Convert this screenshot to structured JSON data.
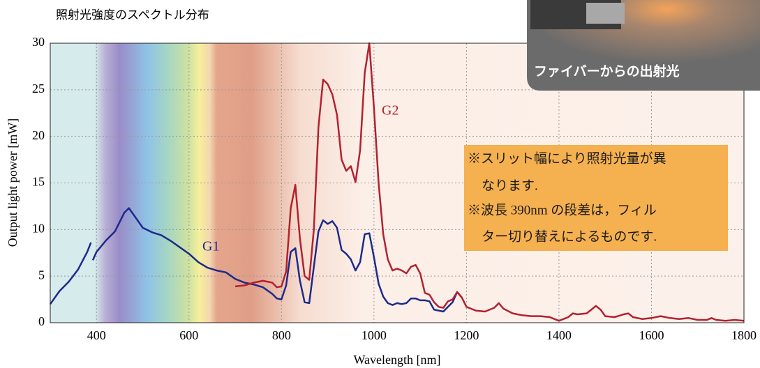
{
  "chart_data": {
    "type": "line",
    "title": "照射光強度のスペクトル分布",
    "xlabel": "Wavelength [nm]",
    "ylabel": "Output light power [mW]",
    "xlim": [
      300,
      1800
    ],
    "ylim": [
      0,
      30
    ],
    "xticks": [
      400,
      600,
      800,
      1000,
      1200,
      1400,
      1600,
      1800
    ],
    "yticks": [
      0,
      5,
      10,
      15,
      20,
      25,
      30
    ],
    "grid": true,
    "inset_caption": "ファイバーからの出射光",
    "annotation_lines": [
      "※スリット幅により照射光量が異",
      "なります.",
      "※波長 390nm の段差は，フィル",
      "ター切り替えによるものです."
    ],
    "series": [
      {
        "name": "G1",
        "color": "#1c2a8a",
        "x": [
          300,
          320,
          340,
          360,
          380,
          388,
          390,
          392,
          400,
          420,
          440,
          460,
          470,
          480,
          500,
          520,
          540,
          560,
          580,
          600,
          620,
          640,
          660,
          680,
          700,
          720,
          740,
          760,
          780,
          790,
          800,
          810,
          820,
          830,
          840,
          850,
          860,
          870,
          880,
          890,
          900,
          910,
          920,
          930,
          940,
          950,
          960,
          970,
          980,
          990,
          1000,
          1010,
          1020,
          1030,
          1040,
          1050,
          1060,
          1070,
          1080,
          1090,
          1100,
          1110,
          1120,
          1130,
          1140,
          1150,
          1160,
          1170,
          1180,
          1190
        ],
        "values": [
          2.0,
          3.4,
          4.4,
          5.7,
          7.6,
          8.6,
          null,
          6.7,
          7.6,
          8.8,
          9.8,
          11.8,
          12.3,
          11.6,
          10.2,
          9.7,
          9.4,
          8.8,
          8.1,
          7.4,
          6.5,
          5.9,
          5.6,
          5.4,
          4.7,
          4.3,
          4.1,
          3.8,
          3.1,
          2.6,
          2.5,
          4.0,
          7.6,
          8.0,
          4.5,
          2.2,
          2.1,
          6.0,
          9.8,
          11.0,
          10.6,
          10.9,
          10.2,
          7.8,
          7.4,
          6.8,
          5.6,
          6.5,
          9.5,
          9.6,
          7.0,
          4.2,
          2.8,
          2.1,
          1.9,
          2.1,
          2.0,
          2.1,
          2.6,
          2.6,
          2.4,
          2.4,
          2.3,
          1.4,
          1.3,
          1.2,
          1.7,
          2.2,
          3.3,
          2.7
        ]
      },
      {
        "name": "G2",
        "color": "#b3212f",
        "x": [
          700,
          720,
          740,
          760,
          780,
          790,
          800,
          810,
          820,
          830,
          840,
          850,
          860,
          870,
          880,
          890,
          900,
          910,
          920,
          930,
          940,
          950,
          960,
          970,
          980,
          990,
          1000,
          1010,
          1020,
          1030,
          1040,
          1050,
          1060,
          1070,
          1080,
          1090,
          1100,
          1110,
          1120,
          1130,
          1140,
          1150,
          1160,
          1170,
          1180,
          1190,
          1200,
          1220,
          1240,
          1260,
          1270,
          1280,
          1300,
          1320,
          1340,
          1360,
          1380,
          1400,
          1420,
          1430,
          1440,
          1460,
          1480,
          1490,
          1500,
          1520,
          1540,
          1550,
          1560,
          1580,
          1600,
          1620,
          1640,
          1660,
          1680,
          1700,
          1720,
          1730,
          1740,
          1760,
          1780,
          1800
        ],
        "values": [
          3.9,
          4.0,
          4.3,
          4.5,
          4.3,
          3.8,
          3.9,
          5.5,
          12.3,
          14.8,
          9.0,
          5.0,
          4.6,
          10.0,
          21.0,
          26.1,
          25.6,
          24.5,
          22.3,
          17.5,
          16.3,
          16.8,
          15.1,
          18.5,
          26.8,
          30.0,
          23.0,
          15.0,
          9.5,
          6.8,
          5.6,
          5.8,
          5.6,
          5.3,
          6.0,
          6.2,
          5.3,
          3.2,
          3.0,
          2.2,
          1.7,
          1.6,
          2.3,
          2.5,
          3.3,
          2.7,
          1.7,
          1.3,
          1.2,
          1.6,
          2.1,
          1.5,
          1.0,
          0.8,
          0.7,
          0.7,
          0.6,
          0.2,
          0.6,
          1.0,
          0.9,
          1.0,
          1.8,
          1.4,
          0.7,
          0.6,
          0.9,
          1.0,
          0.6,
          0.4,
          0.5,
          0.7,
          0.5,
          0.4,
          0.5,
          0.3,
          0.3,
          0.5,
          0.3,
          0.2,
          0.3,
          0.2
        ]
      }
    ]
  }
}
